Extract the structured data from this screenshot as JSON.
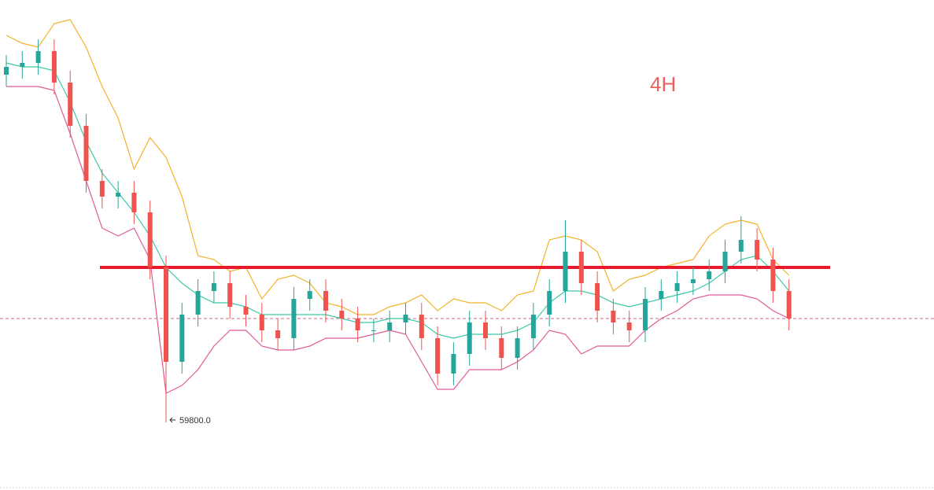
{
  "chart_data": {
    "type": "candlestick",
    "annotation": "4H",
    "open": [
      68300,
      68500,
      68600,
      68900,
      68100,
      67000,
      65600,
      65200,
      65300,
      64800,
      63400,
      61000,
      62200,
      62800,
      63000,
      62400,
      62200,
      61800,
      61600,
      62600,
      62800,
      62300,
      62100,
      61800,
      61800,
      62000,
      62200,
      61600,
      60700,
      61200,
      62000,
      61600,
      61100,
      61600,
      62200,
      62800,
      63800,
      63000,
      62300,
      62000,
      61800,
      62600,
      62800,
      63000,
      63100,
      63300,
      63800,
      64100,
      63600,
      62800
    ],
    "high": [
      68800,
      68900,
      69200,
      69200,
      68400,
      67300,
      65900,
      65600,
      65600,
      65100,
      63700,
      62500,
      63100,
      63300,
      63300,
      62700,
      62500,
      62100,
      62900,
      63100,
      63100,
      62600,
      62400,
      62100,
      62300,
      62500,
      62500,
      61900,
      61500,
      62300,
      62300,
      61900,
      61900,
      62500,
      63100,
      64600,
      64100,
      63300,
      62600,
      62300,
      62900,
      63100,
      63300,
      63400,
      63600,
      64100,
      64700,
      64400,
      63900,
      63100
    ],
    "low": [
      68000,
      68200,
      68300,
      67800,
      66700,
      65300,
      64900,
      64900,
      64500,
      63100,
      59800,
      60700,
      61900,
      62500,
      62100,
      61900,
      61500,
      61300,
      61300,
      62300,
      62000,
      61800,
      61500,
      61500,
      61500,
      61700,
      61300,
      60400,
      60400,
      60900,
      61300,
      60800,
      60800,
      61300,
      61900,
      62500,
      62700,
      62000,
      61700,
      61500,
      61500,
      62300,
      62500,
      62700,
      62800,
      63000,
      63500,
      63300,
      62500,
      61800
    ],
    "close": [
      68500,
      68600,
      68900,
      68100,
      67000,
      65600,
      65200,
      65300,
      64800,
      63400,
      61000,
      62200,
      62800,
      63000,
      62400,
      62200,
      61800,
      61600,
      62600,
      62800,
      62300,
      62100,
      61800,
      61800,
      62000,
      62200,
      61600,
      60700,
      61200,
      62000,
      61600,
      61100,
      61600,
      62200,
      62800,
      63800,
      63000,
      62300,
      62000,
      61800,
      62600,
      62800,
      63000,
      63100,
      63300,
      63800,
      64100,
      63600,
      62800,
      62100
    ],
    "up_color": "#26a69a",
    "down_color": "#ef5350",
    "bands": [
      {
        "color": "#f2b329",
        "values": [
          69300,
          69100,
          69000,
          69600,
          69700,
          69000,
          68000,
          67200,
          65900,
          66700,
          66200,
          65200,
          63700,
          63600,
          63300,
          63400,
          62600,
          63100,
          63200,
          63000,
          62500,
          62400,
          62200,
          62200,
          62400,
          62500,
          62700,
          62300,
          62600,
          62500,
          62500,
          62300,
          62700,
          62800,
          64100,
          64200,
          64100,
          63800,
          62800,
          63100,
          63200,
          63400,
          63500,
          63600,
          64200,
          64500,
          64600,
          64500,
          63600,
          63200
        ]
      },
      {
        "color": "#3ccaa8",
        "values": [
          68600,
          68500,
          68500,
          68400,
          67600,
          66600,
          65800,
          65300,
          64800,
          64200,
          63400,
          63000,
          62700,
          62500,
          62500,
          62400,
          62200,
          62200,
          62200,
          62200,
          62200,
          62100,
          62000,
          62000,
          62100,
          62100,
          62000,
          61700,
          61600,
          61700,
          61700,
          61700,
          61800,
          62000,
          62500,
          62800,
          62800,
          62700,
          62500,
          62400,
          62500,
          62600,
          62700,
          62800,
          63000,
          63300,
          63600,
          63700,
          63300,
          62800
        ]
      },
      {
        "color": "#e05a98",
        "values": [
          68000,
          68000,
          68000,
          67900,
          66800,
          65600,
          64400,
          64200,
          64400,
          63600,
          60200,
          60400,
          60800,
          61400,
          61800,
          61800,
          61400,
          61300,
          61300,
          61400,
          61600,
          61600,
          61600,
          61700,
          61800,
          61700,
          61000,
          60300,
          60300,
          60800,
          60800,
          60800,
          61000,
          61300,
          61800,
          61700,
          61200,
          61400,
          61400,
          61400,
          61800,
          62100,
          62300,
          62600,
          62700,
          62700,
          62700,
          62600,
          62300,
          62100
        ]
      }
    ],
    "ylim": [
      57800,
      70200
    ],
    "level_line": {
      "value": 63400,
      "color": "#e8192c"
    },
    "last_price": {
      "value": 62100,
      "color": "#c76a86"
    },
    "low_annotation": {
      "value": 59800,
      "label": "59800.0"
    }
  }
}
